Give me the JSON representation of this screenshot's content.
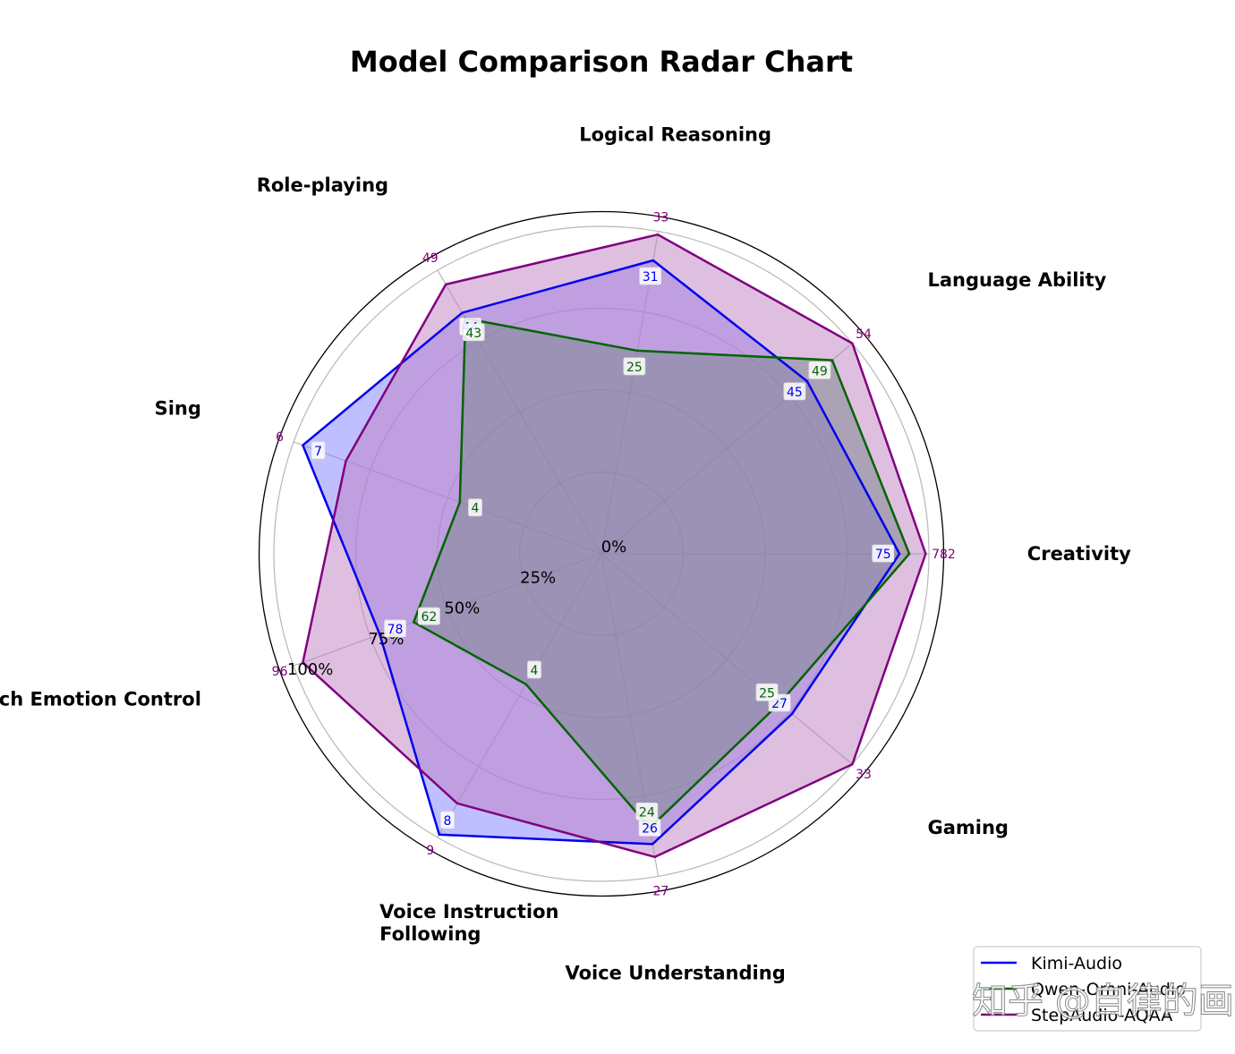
{
  "chart_data": {
    "type": "radar",
    "title": "Model Comparison Radar Chart",
    "categories": [
      "Creativity",
      "Language Ability",
      "Logical Reasoning",
      "Role-playing",
      "Sing",
      "Speech Emotion Control",
      "Voice Instruction Following",
      "Voice Understanding",
      "Gaming"
    ],
    "category_display": [
      "Creativity",
      "Language Ability",
      "Logical Reasoning",
      "Role-playing",
      "Sing",
      "Speech Emotion Control",
      "Voice Instruction\nFollowing",
      "Voice Understanding",
      "Gaming"
    ],
    "r_ticks": [
      "0%",
      "25%",
      "50%",
      "75%",
      "100%"
    ],
    "rlim": [
      0,
      1
    ],
    "series": [
      {
        "name": "Kimi-Audio",
        "color": "#0000ee",
        "fill": "#8080ff",
        "values": [
          0.91,
          0.82,
          0.91,
          0.85,
          0.97,
          0.72,
          0.99,
          0.9,
          0.76
        ],
        "labels": [
          "75",
          "45",
          "31",
          "44",
          "7",
          "78",
          "8",
          "26",
          "27"
        ]
      },
      {
        "name": "Qwen-Omni-Audio",
        "color": "#006400",
        "fill": "#2e8b57",
        "values": [
          0.94,
          0.92,
          0.63,
          0.83,
          0.46,
          0.61,
          0.46,
          0.85,
          0.71
        ],
        "labels": [
          "",
          "49",
          "25",
          "43",
          "4",
          "62",
          "4",
          "24",
          "25"
        ]
      },
      {
        "name": "StepAudio-AQAA",
        "color": "#800080",
        "fill": "#c080c0",
        "values": [
          0.99,
          1.0,
          0.99,
          0.95,
          0.83,
          0.97,
          0.88,
          0.94,
          1.0
        ],
        "labels": [
          "782",
          "54",
          "33",
          "49",
          "6",
          "96",
          "9",
          "27",
          "33"
        ]
      }
    ],
    "legend": {
      "location": "lower-right",
      "entries": [
        "Kimi-Audio",
        "Qwen-Omni-Audio",
        "StepAudio-AQAA"
      ]
    }
  },
  "watermark": "知乎 @自律的画扬"
}
